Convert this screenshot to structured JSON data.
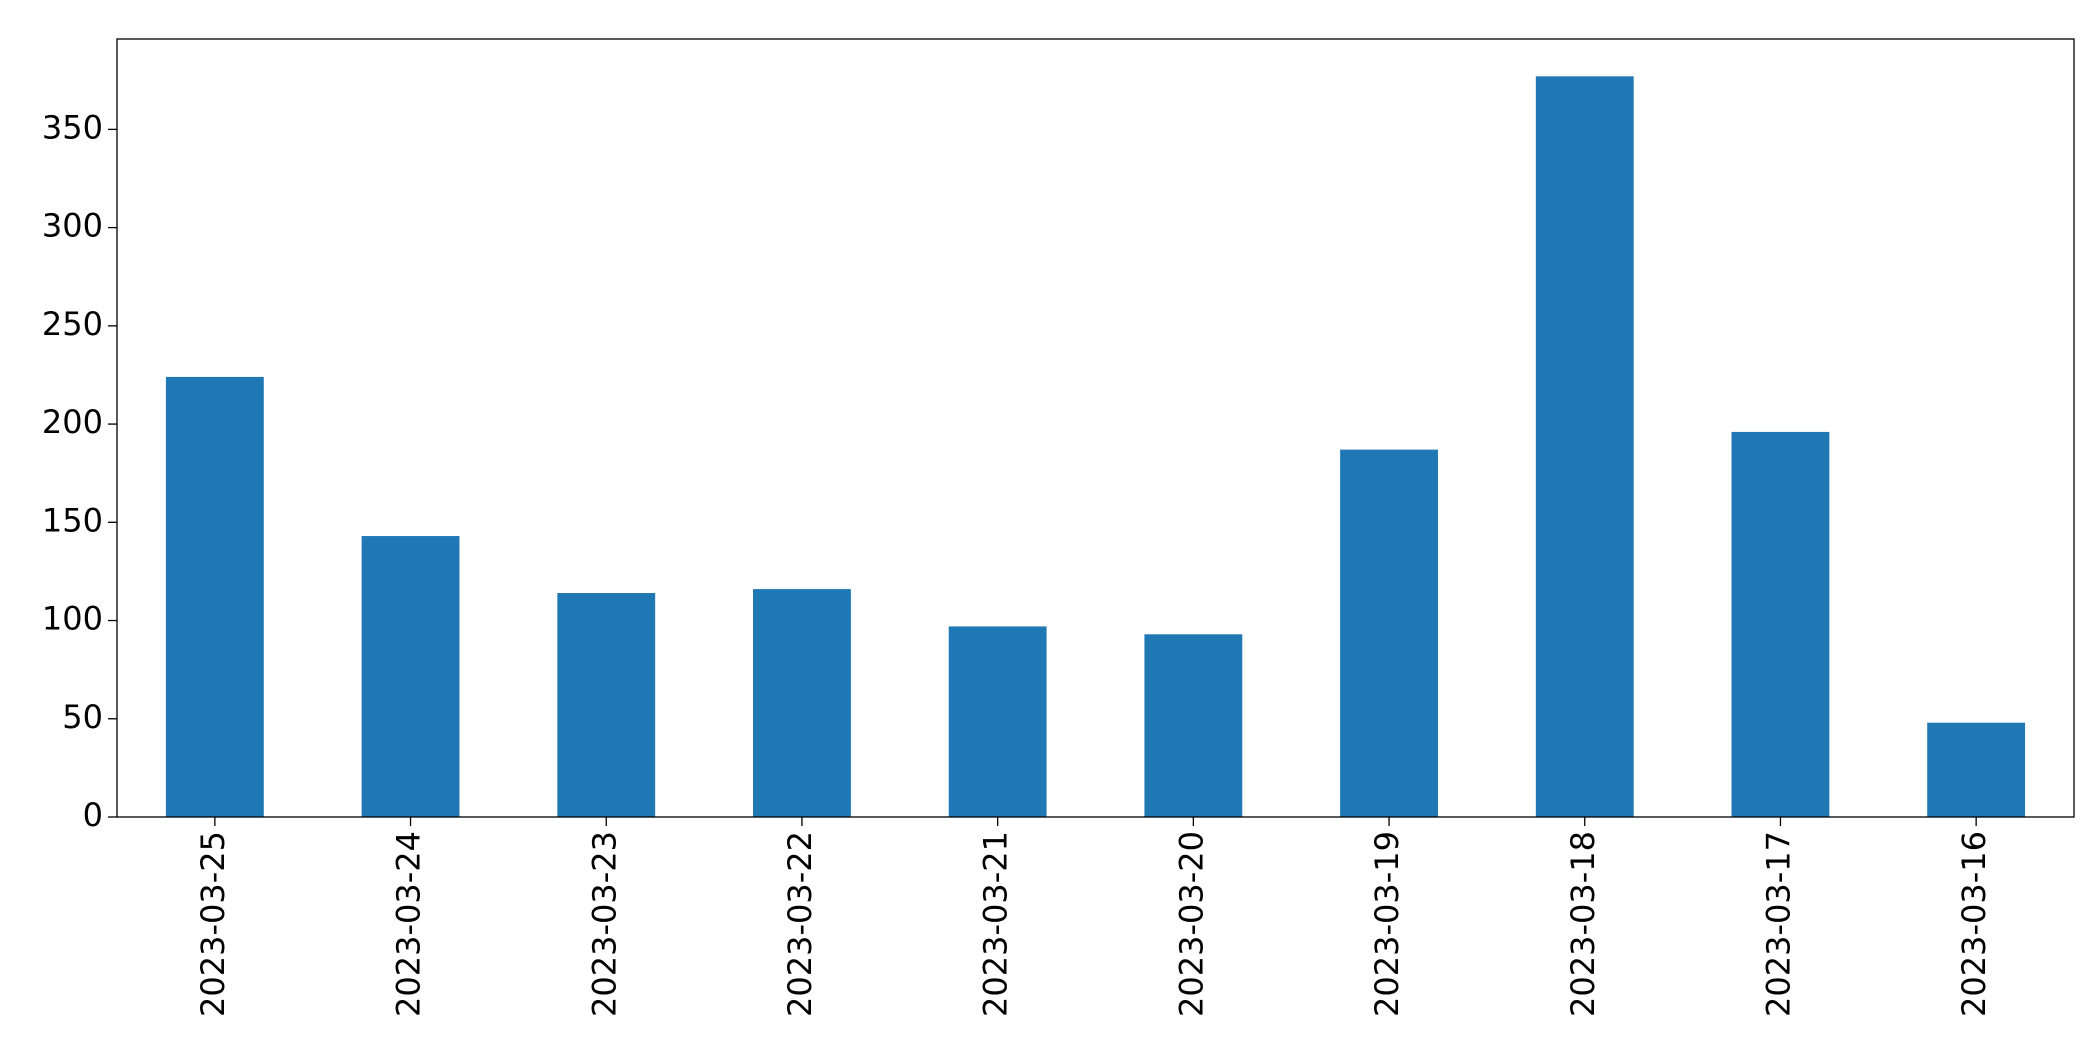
{
  "chart_data": {
    "type": "bar",
    "categories": [
      "2023-03-25",
      "2023-03-24",
      "2023-03-23",
      "2023-03-22",
      "2023-03-21",
      "2023-03-20",
      "2023-03-19",
      "2023-03-18",
      "2023-03-17",
      "2023-03-16"
    ],
    "values": [
      224,
      143,
      114,
      116,
      97,
      93,
      187,
      377,
      196,
      48
    ],
    "color": "#1f77b4",
    "ylim": [
      0,
      396
    ],
    "yticks": [
      0,
      50,
      100,
      150,
      200,
      250,
      300,
      350
    ],
    "grid": false
  }
}
